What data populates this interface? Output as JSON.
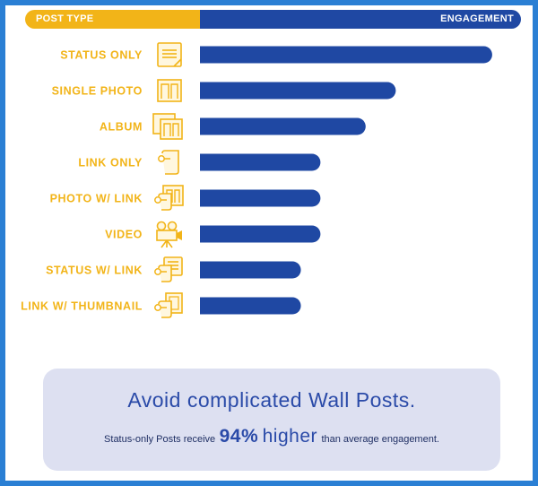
{
  "header": {
    "left_label": "POST TYPE",
    "right_label": "ENGAGEMENT"
  },
  "chart_data": {
    "type": "bar",
    "orientation": "horizontal",
    "categories": [
      "STATUS ONLY",
      "SINGLE PHOTO",
      "ALBUM",
      "LINK ONLY",
      "PHOTO W/ LINK",
      "VIDEO",
      "STATUS W/ LINK",
      "LINK W/ THUMBNAIL"
    ],
    "values": [
      194,
      130,
      110,
      80,
      80,
      80,
      67,
      67
    ],
    "icons": [
      "status-icon",
      "photo-icon",
      "album-icon",
      "link-icon",
      "photo-link-icon",
      "video-camera-icon",
      "status-link-icon",
      "link-thumbnail-icon"
    ],
    "xlim": [
      0,
      200
    ],
    "axis_visible": false,
    "grid": false,
    "bar_color": "#1f48a3",
    "label_color": "#f2b418",
    "title": "",
    "xlabel": "",
    "ylabel": ""
  },
  "callout": {
    "title": "Avoid complicated Wall Posts.",
    "pre": "Status-only Posts receive",
    "percent": "94%",
    "emphasis": "higher",
    "post": "than average engagement."
  },
  "colors": {
    "border": "#2a7fd4",
    "accent_yellow": "#f2b418",
    "accent_blue": "#1f48a3",
    "callout_bg": "#dde0f1"
  }
}
